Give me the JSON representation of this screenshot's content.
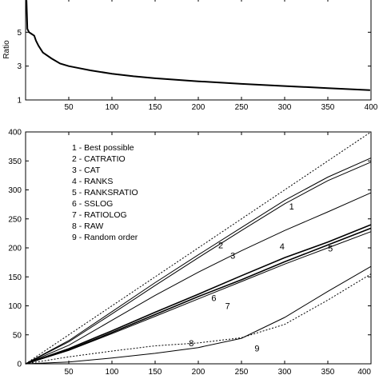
{
  "chart_data": [
    {
      "type": "line",
      "title": "",
      "xlabel": "",
      "ylabel": "Ratio",
      "xlim": [
        0,
        400
      ],
      "ylim": [
        1,
        7
      ],
      "xticks": [
        50,
        100,
        150,
        200,
        250,
        300,
        350,
        400
      ],
      "yticks": [
        1,
        3,
        5
      ],
      "series": [
        {
          "x": [
            1,
            2,
            4,
            7,
            10,
            12,
            15,
            20,
            30,
            40,
            50,
            60,
            75,
            100,
            125,
            150,
            200,
            250,
            300,
            350,
            399
          ],
          "y": [
            6.9,
            5.2,
            5.0,
            4.9,
            4.8,
            4.5,
            4.2,
            3.8,
            3.45,
            3.15,
            3.0,
            2.9,
            2.75,
            2.55,
            2.4,
            2.28,
            2.1,
            1.95,
            1.82,
            1.7,
            1.58
          ]
        }
      ]
    },
    {
      "type": "line",
      "title": "",
      "xlabel": "",
      "ylabel": "",
      "xlim": [
        0,
        400
      ],
      "ylim": [
        0,
        400
      ],
      "xticks": [
        50,
        100,
        150,
        200,
        250,
        300,
        350,
        400
      ],
      "yticks": [
        0,
        50,
        100,
        150,
        200,
        250,
        300,
        350,
        400
      ],
      "legend": [
        "1 - Best possible",
        "2 - CATRATIO",
        "3 - CAT",
        "4 - RANKS",
        "5 - RANKSRATIO",
        "6 - SSLOG",
        "7 - RATIOLOG",
        "8 - RAW",
        "9 - Random order"
      ],
      "series": [
        {
          "label": "1",
          "label_x": 308,
          "label_y": 272,
          "dashed": true,
          "x": [
            0,
            400
          ],
          "y": [
            0,
            400
          ]
        },
        {
          "label": "2",
          "label_x": 226,
          "label_y": 205,
          "dashed": false,
          "x": [
            0,
            50,
            100,
            150,
            200,
            250,
            300,
            350,
            400
          ],
          "y": [
            0,
            40,
            90,
            140,
            188,
            235,
            282,
            322,
            355
          ]
        },
        {
          "label": "3",
          "label_x": 240,
          "label_y": 187,
          "dashed": false,
          "x": [
            0,
            50,
            100,
            150,
            200,
            250,
            300,
            350,
            400
          ],
          "y": [
            0,
            38,
            86,
            135,
            183,
            230,
            276,
            316,
            348
          ]
        },
        {
          "label": "4",
          "label_x": 297,
          "label_y": 203,
          "dashed": false,
          "x": [
            0,
            50,
            100,
            150,
            200,
            250,
            300,
            350,
            400
          ],
          "y": [
            0,
            32,
            75,
            118,
            158,
            195,
            230,
            262,
            295
          ]
        },
        {
          "label": "5",
          "label_x": 353,
          "label_y": 199,
          "dashed": false,
          "x": [
            0,
            50,
            100,
            150,
            200,
            250,
            300,
            350,
            400
          ],
          "y": [
            0,
            26,
            57,
            89,
            120,
            152,
            183,
            210,
            240
          ]
        },
        {
          "label": "6",
          "label_x": 218,
          "label_y": 114,
          "dashed": false,
          "x": [
            0,
            50,
            100,
            150,
            200,
            250,
            300,
            350,
            400
          ],
          "y": [
            0,
            24,
            54,
            85,
            116,
            145,
            176,
            205,
            234
          ]
        },
        {
          "label": "7",
          "label_x": 234,
          "label_y": 100,
          "dashed": false,
          "x": [
            0,
            50,
            100,
            150,
            200,
            250,
            300,
            350,
            400
          ],
          "y": [
            0,
            23,
            52,
            82,
            112,
            142,
            172,
            200,
            228
          ]
        },
        {
          "label": "8",
          "label_x": 192,
          "label_y": 36,
          "dashed": false,
          "x": [
            0,
            50,
            100,
            150,
            200,
            250,
            300,
            350,
            400
          ],
          "y": [
            0,
            3,
            10,
            18,
            28,
            44,
            80,
            125,
            168
          ]
        },
        {
          "label": "9",
          "label_x": 268,
          "label_y": 27,
          "dashed": true,
          "x": [
            0,
            50,
            100,
            150,
            200,
            250,
            300,
            350,
            400
          ],
          "y": [
            0,
            12,
            22,
            31,
            36,
            45,
            68,
            110,
            155
          ]
        }
      ]
    }
  ]
}
